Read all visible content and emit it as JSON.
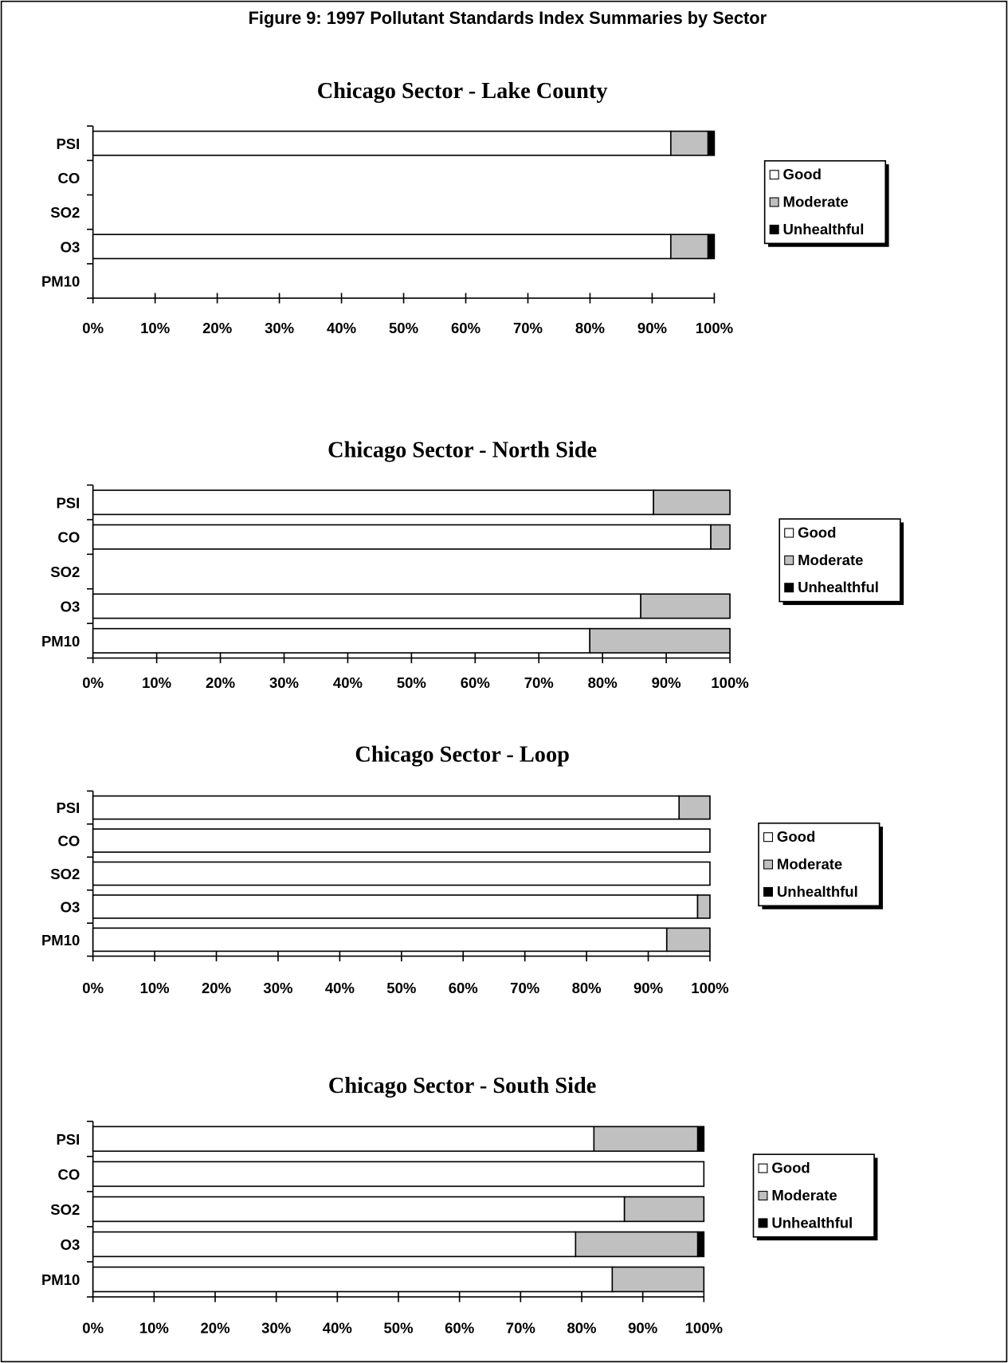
{
  "figure_title": "Figure 9:  1997 Pollutant Standards Index Summaries by Sector",
  "chart_data": [
    {
      "type": "bar",
      "orientation": "horizontal",
      "stacked": true,
      "title": "Chicago Sector - Lake County",
      "categories": [
        "PSI",
        "CO",
        "SO2",
        "O3",
        "PM10"
      ],
      "series": [
        {
          "name": "Good",
          "color": "#ffffff",
          "values": [
            93,
            null,
            null,
            93,
            null
          ]
        },
        {
          "name": "Moderate",
          "color": "#c0c0c0",
          "values": [
            6,
            null,
            null,
            6,
            null
          ]
        },
        {
          "name": "Unhealthful",
          "color": "#000000",
          "values": [
            1,
            null,
            null,
            1,
            null
          ]
        }
      ],
      "xlim": [
        0,
        100
      ],
      "xticks": [
        {
          "value": 0,
          "label": "0%"
        },
        {
          "value": 10,
          "label": "10%"
        },
        {
          "value": 20,
          "label": "20%"
        },
        {
          "value": 30,
          "label": "30%"
        },
        {
          "value": 40,
          "label": "40%"
        },
        {
          "value": 50,
          "label": "50%"
        },
        {
          "value": 60,
          "label": "60%"
        },
        {
          "value": 70,
          "label": "70%"
        },
        {
          "value": 80,
          "label": "80%"
        },
        {
          "value": 90,
          "label": "90%"
        },
        {
          "value": 100,
          "label": "100%"
        }
      ],
      "legend": "right"
    },
    {
      "type": "bar",
      "orientation": "horizontal",
      "stacked": true,
      "title": "Chicago Sector - North Side",
      "categories": [
        "PSI",
        "CO",
        "SO2",
        "O3",
        "PM10"
      ],
      "series": [
        {
          "name": "Good",
          "color": "#ffffff",
          "values": [
            88,
            97,
            null,
            86,
            78
          ]
        },
        {
          "name": "Moderate",
          "color": "#c0c0c0",
          "values": [
            12,
            3,
            null,
            14,
            22
          ]
        },
        {
          "name": "Unhealthful",
          "color": "#000000",
          "values": [
            0,
            0,
            null,
            0,
            0
          ]
        }
      ],
      "xlim": [
        0,
        100
      ],
      "xticks": [
        {
          "value": 0,
          "label": "0%"
        },
        {
          "value": 10,
          "label": "10%"
        },
        {
          "value": 20,
          "label": "20%"
        },
        {
          "value": 30,
          "label": "30%"
        },
        {
          "value": 40,
          "label": "40%"
        },
        {
          "value": 50,
          "label": "50%"
        },
        {
          "value": 60,
          "label": "60%"
        },
        {
          "value": 70,
          "label": "70%"
        },
        {
          "value": 80,
          "label": "80%"
        },
        {
          "value": 90,
          "label": "90%"
        },
        {
          "value": 100,
          "label": "100%"
        }
      ],
      "legend": "right"
    },
    {
      "type": "bar",
      "orientation": "horizontal",
      "stacked": true,
      "title": "Chicago Sector - Loop",
      "categories": [
        "PSI",
        "CO",
        "SO2",
        "O3",
        "PM10"
      ],
      "series": [
        {
          "name": "Good",
          "color": "#ffffff",
          "values": [
            95,
            100,
            100,
            98,
            93
          ]
        },
        {
          "name": "Moderate",
          "color": "#c0c0c0",
          "values": [
            5,
            0,
            0,
            2,
            7
          ]
        },
        {
          "name": "Unhealthful",
          "color": "#000000",
          "values": [
            0,
            0,
            0,
            0,
            0
          ]
        }
      ],
      "xlim": [
        0,
        100
      ],
      "xticks": [
        {
          "value": 0,
          "label": "0%"
        },
        {
          "value": 10,
          "label": "10%"
        },
        {
          "value": 20,
          "label": "20%"
        },
        {
          "value": 30,
          "label": "30%"
        },
        {
          "value": 40,
          "label": "40%"
        },
        {
          "value": 50,
          "label": "50%"
        },
        {
          "value": 60,
          "label": "60%"
        },
        {
          "value": 70,
          "label": "70%"
        },
        {
          "value": 80,
          "label": "80%"
        },
        {
          "value": 90,
          "label": "90%"
        },
        {
          "value": 100,
          "label": "100%"
        }
      ],
      "legend": "right"
    },
    {
      "type": "bar",
      "orientation": "horizontal",
      "stacked": true,
      "title": "Chicago Sector - South Side",
      "categories": [
        "PSI",
        "CO",
        "SO2",
        "O3",
        "PM10"
      ],
      "series": [
        {
          "name": "Good",
          "color": "#ffffff",
          "values": [
            82,
            100,
            87,
            79,
            85
          ]
        },
        {
          "name": "Moderate",
          "color": "#c0c0c0",
          "values": [
            17,
            0,
            13,
            20,
            15
          ]
        },
        {
          "name": "Unhealthful",
          "color": "#000000",
          "values": [
            1,
            0,
            0,
            1,
            0
          ]
        }
      ],
      "xlim": [
        0,
        100
      ],
      "xticks": [
        {
          "value": 0,
          "label": "0%"
        },
        {
          "value": 10,
          "label": "10%"
        },
        {
          "value": 20,
          "label": "20%"
        },
        {
          "value": 30,
          "label": "30%"
        },
        {
          "value": 40,
          "label": "40%"
        },
        {
          "value": 50,
          "label": "50%"
        },
        {
          "value": 60,
          "label": "60%"
        },
        {
          "value": 70,
          "label": "70%"
        },
        {
          "value": 80,
          "label": "80%"
        },
        {
          "value": 90,
          "label": "90%"
        },
        {
          "value": 100,
          "label": "100%"
        }
      ],
      "legend": "right"
    }
  ]
}
